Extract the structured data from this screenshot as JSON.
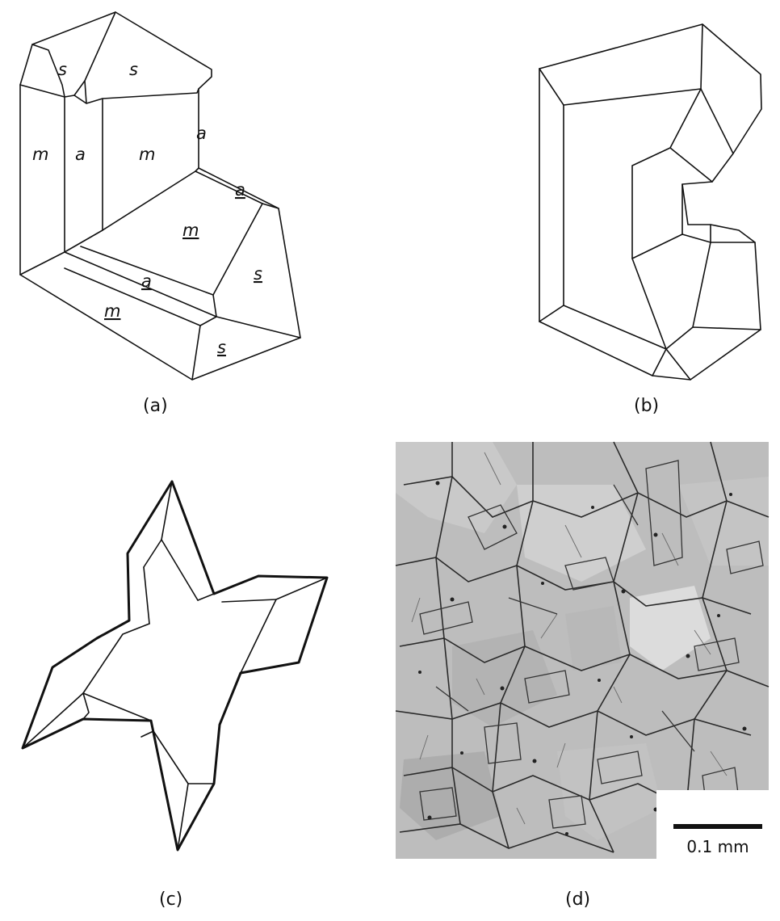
{
  "panels": {
    "a": {
      "caption": "(a)",
      "face_labels": {
        "s_left": "s",
        "s_right": "s",
        "m_left": "m",
        "a_left": "a",
        "m_center": "m",
        "a_right": "a",
        "a_twin_top": "a",
        "m_twin_center": "m",
        "a_twin_bottom": "a",
        "m_twin_bottom": "m",
        "s_twin_right": "s",
        "s_twin_bottom": "s"
      }
    },
    "b": {
      "caption": "(b)"
    },
    "c": {
      "caption": "(c)"
    },
    "d": {
      "caption": "(d)",
      "scale_bar_label": "0.1 mm"
    }
  }
}
